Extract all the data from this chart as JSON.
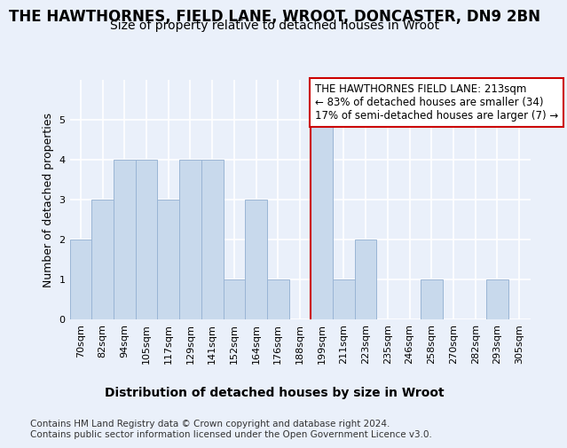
{
  "title1": "THE HAWTHORNES, FIELD LANE, WROOT, DONCASTER, DN9 2BN",
  "title2": "Size of property relative to detached houses in Wroot",
  "xlabel": "Distribution of detached houses by size in Wroot",
  "ylabel": "Number of detached properties",
  "footer": "Contains HM Land Registry data © Crown copyright and database right 2024.\nContains public sector information licensed under the Open Government Licence v3.0.",
  "bar_labels": [
    "70sqm",
    "82sqm",
    "94sqm",
    "105sqm",
    "117sqm",
    "129sqm",
    "141sqm",
    "152sqm",
    "164sqm",
    "176sqm",
    "188sqm",
    "199sqm",
    "211sqm",
    "223sqm",
    "235sqm",
    "246sqm",
    "258sqm",
    "270sqm",
    "282sqm",
    "293sqm",
    "305sqm"
  ],
  "bar_values": [
    2,
    3,
    4,
    4,
    3,
    4,
    4,
    1,
    3,
    1,
    0,
    5,
    1,
    2,
    0,
    0,
    1,
    0,
    0,
    1,
    0
  ],
  "bar_color": "#c8d9ec",
  "bar_edgecolor": "#9ab5d5",
  "vline_index": 11,
  "vline_color": "#cc0000",
  "annotation_text": "THE HAWTHORNES FIELD LANE: 213sqm\n← 83% of detached houses are smaller (34)\n17% of semi-detached houses are larger (7) →",
  "ylim": [
    0,
    6
  ],
  "yticks": [
    0,
    1,
    2,
    3,
    4,
    5,
    6
  ],
  "bg_color": "#eaf0fa",
  "plot_bg_color": "#eaf0fa",
  "grid_color": "#ffffff",
  "title1_fontsize": 12,
  "title2_fontsize": 10,
  "xlabel_fontsize": 10,
  "ylabel_fontsize": 9,
  "tick_fontsize": 8,
  "annotation_fontsize": 8.5,
  "footer_fontsize": 7.5
}
